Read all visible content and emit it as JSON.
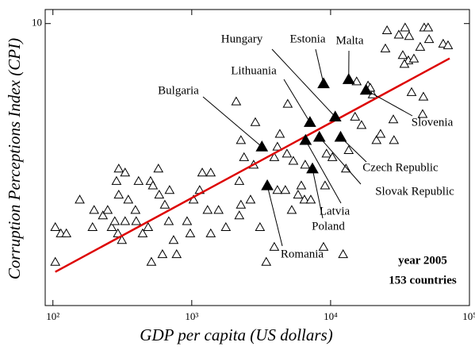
{
  "chart_data": {
    "type": "scatter",
    "xlabel": "GDP per capita (US dollars)",
    "ylabel": "Corruption Perceptions Index (CPI)",
    "xlog": true,
    "ylog": true,
    "xlim": [
      88,
      100000
    ],
    "ylim": [
      1.23,
      11.1
    ],
    "xticks": [
      {
        "value": 100,
        "label": "10²"
      },
      {
        "value": 1000,
        "label": "10³"
      },
      {
        "value": 10000,
        "label": "10⁴"
      },
      {
        "value": 100000,
        "label": "10⁵"
      }
    ],
    "yticks": [
      10
    ],
    "annotations": [
      "year 2005",
      "153 countries"
    ],
    "fit": {
      "color": "#dd0000",
      "x": [
        104,
        72000
      ],
      "y": [
        1.58,
        7.72
      ]
    },
    "highlighted": {
      "color": "#000000",
      "names": [
        "Estonia",
        "Malta",
        "Slovenia",
        "Hungary",
        "Lithuania",
        "Czech Republic",
        "Slovak Republic",
        "Latvia",
        "Poland",
        "Bulgaria",
        "Romania"
      ],
      "x": [
        8900,
        13500,
        18000,
        10800,
        7100,
        11800,
        8300,
        6600,
        7400,
        3200,
        3500
      ],
      "y": [
        6.4,
        6.6,
        6.1,
        5.0,
        4.8,
        4.3,
        4.3,
        4.2,
        3.4,
        4.0,
        3.0
      ]
    },
    "others": {
      "color": "#ffffff",
      "x": [
        104,
        114,
        104,
        125,
        156,
        198,
        229,
        193,
        248,
        265,
        294,
        279,
        314,
        331,
        349,
        393,
        414,
        287,
        298,
        331,
        298,
        398,
        443,
        485,
        505,
        525,
        575,
        583,
        640,
        692,
        740,
        683,
        615,
        512,
        778,
        925,
        975,
        1030,
        1190,
        1370,
        1140,
        1300,
        1370,
        1560,
        1760,
        2260,
        2650,
        3100,
        3440,
        3930,
        2200,
        4140,
        4720,
        5250,
        5830,
        6150,
        6480,
        7200,
        9120,
        9350,
        12300,
        8890,
        2200,
        2260,
        2380,
        2790,
        2870,
        3930,
        4140,
        4310,
        4850,
        5390,
        4910,
        6560,
        2090,
        10300,
        12900,
        13500,
        15000,
        16700,
        21400,
        22900,
        28300,
        28600,
        38300,
        46600,
        46000,
        20100,
        18600,
        15400,
        24800,
        25500,
        31000,
        34400,
        36800,
        47200,
        50400,
        36300,
        34000,
        39800,
        33100,
        44200,
        51200,
        64700,
        70100,
        19300
      ],
      "y": [
        2.2,
        2.1,
        1.7,
        2.1,
        2.7,
        2.5,
        2.4,
        2.2,
        2.5,
        2.2,
        2.1,
        2.3,
        2.0,
        2.3,
        2.7,
        2.5,
        3.1,
        3.1,
        3.4,
        3.3,
        2.8,
        2.3,
        2.1,
        2.2,
        3.1,
        3.0,
        3.4,
        2.8,
        2.6,
        2.9,
        2.0,
        2.3,
        1.8,
        1.7,
        1.8,
        2.3,
        2.1,
        2.7,
        3.3,
        3.3,
        2.9,
        2.5,
        2.1,
        2.5,
        2.2,
        2.6,
        2.7,
        2.2,
        1.7,
        1.9,
        2.4,
        2.9,
        2.9,
        2.5,
        2.8,
        3.0,
        2.7,
        2.7,
        3.0,
        3.8,
        1.8,
        1.9,
        3.1,
        4.2,
        3.7,
        3.5,
        4.8,
        3.7,
        4.0,
        4.4,
        3.8,
        3.6,
        5.5,
        3.5,
        5.6,
        3.7,
        3.4,
        3.9,
        5.0,
        4.7,
        4.2,
        4.4,
        4.9,
        4.2,
        6.0,
        5.8,
        5.1,
        5.9,
        6.3,
        6.5,
        8.3,
        9.5,
        9.2,
        9.7,
        9.1,
        9.7,
        9.7,
        7.6,
        7.4,
        7.7,
        7.9,
        8.4,
        8.9,
        8.6,
        8.5,
        6.2
      ]
    }
  }
}
